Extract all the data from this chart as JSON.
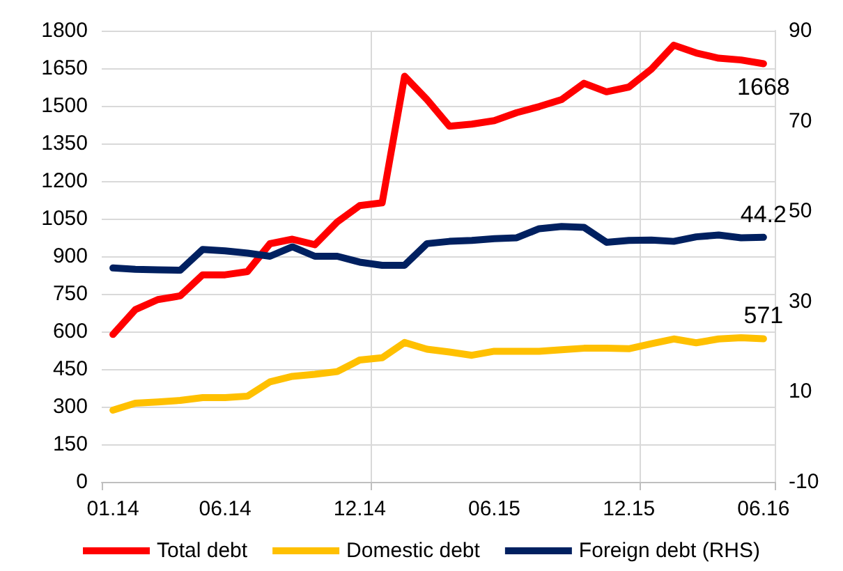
{
  "chart_data": {
    "type": "line",
    "categories": [
      "01.14",
      null,
      null,
      null,
      null,
      "06.14",
      null,
      null,
      null,
      null,
      null,
      "12.14",
      null,
      null,
      null,
      null,
      null,
      "06.15",
      null,
      null,
      null,
      null,
      null,
      "12.15",
      null,
      null,
      null,
      null,
      null,
      "06.16"
    ],
    "series": [
      {
        "name": "Total debt",
        "color": "#ff0000",
        "values": [
          588,
          687,
          727,
          742,
          826,
          826,
          839,
          950,
          968,
          946,
          1037,
          1102,
          1113,
          1618,
          1525,
          1419,
          1427,
          1441,
          1473,
          1497,
          1525,
          1590,
          1556,
          1575,
          1646,
          1742,
          1711,
          1690,
          1683,
          1668
        ],
        "value_labels": [
          null,
          null,
          null,
          null,
          null,
          null,
          null,
          null,
          null,
          null,
          null,
          null,
          null,
          null,
          null,
          null,
          null,
          null,
          null,
          null,
          null,
          null,
          null,
          null,
          null,
          null,
          null,
          null,
          null,
          "1668"
        ]
      },
      {
        "name": "Domestic debt",
        "color": "#ffc000",
        "values": [
          286,
          314,
          319,
          325,
          336,
          336,
          342,
          399,
          421,
          429,
          440,
          486,
          495,
          556,
          529,
          518,
          505,
          521,
          521,
          521,
          527,
          533,
          533,
          531,
          551,
          570,
          555,
          570,
          575,
          571
        ],
        "value_labels": [
          null,
          null,
          null,
          null,
          null,
          null,
          null,
          null,
          null,
          null,
          null,
          null,
          null,
          null,
          null,
          null,
          null,
          null,
          null,
          null,
          null,
          null,
          null,
          null,
          null,
          null,
          null,
          null,
          null,
          "571"
        ]
      },
      {
        "name": "Foreign debt (RHS)",
        "color": "#002060",
        "axis": "y2",
        "values": [
          37.4,
          37.1,
          37.0,
          36.9,
          41.5,
          41.2,
          40.7,
          40.0,
          42.1,
          40.0,
          40.0,
          38.7,
          38.0,
          38.0,
          42.8,
          43.3,
          43.5,
          43.9,
          44.1,
          46.1,
          46.6,
          46.4,
          43.1,
          43.5,
          43.6,
          43.3,
          44.3,
          44.7,
          44.1,
          44.2
        ],
        "value_labels": [
          null,
          null,
          null,
          null,
          null,
          null,
          null,
          null,
          null,
          null,
          null,
          null,
          null,
          null,
          null,
          null,
          null,
          null,
          null,
          null,
          null,
          null,
          null,
          null,
          null,
          null,
          null,
          null,
          null,
          "44.2"
        ]
      }
    ],
    "ylim": [
      0,
      1800
    ],
    "yticks": [
      0,
      150,
      300,
      450,
      600,
      750,
      900,
      1050,
      1200,
      1350,
      1500,
      1650,
      1800
    ],
    "y2lim": [
      -10,
      90
    ],
    "y2ticks": [
      -10,
      10,
      30,
      50,
      70,
      90
    ],
    "grid": true,
    "legend": "bottom",
    "marker": "none",
    "line_style": "solid"
  }
}
